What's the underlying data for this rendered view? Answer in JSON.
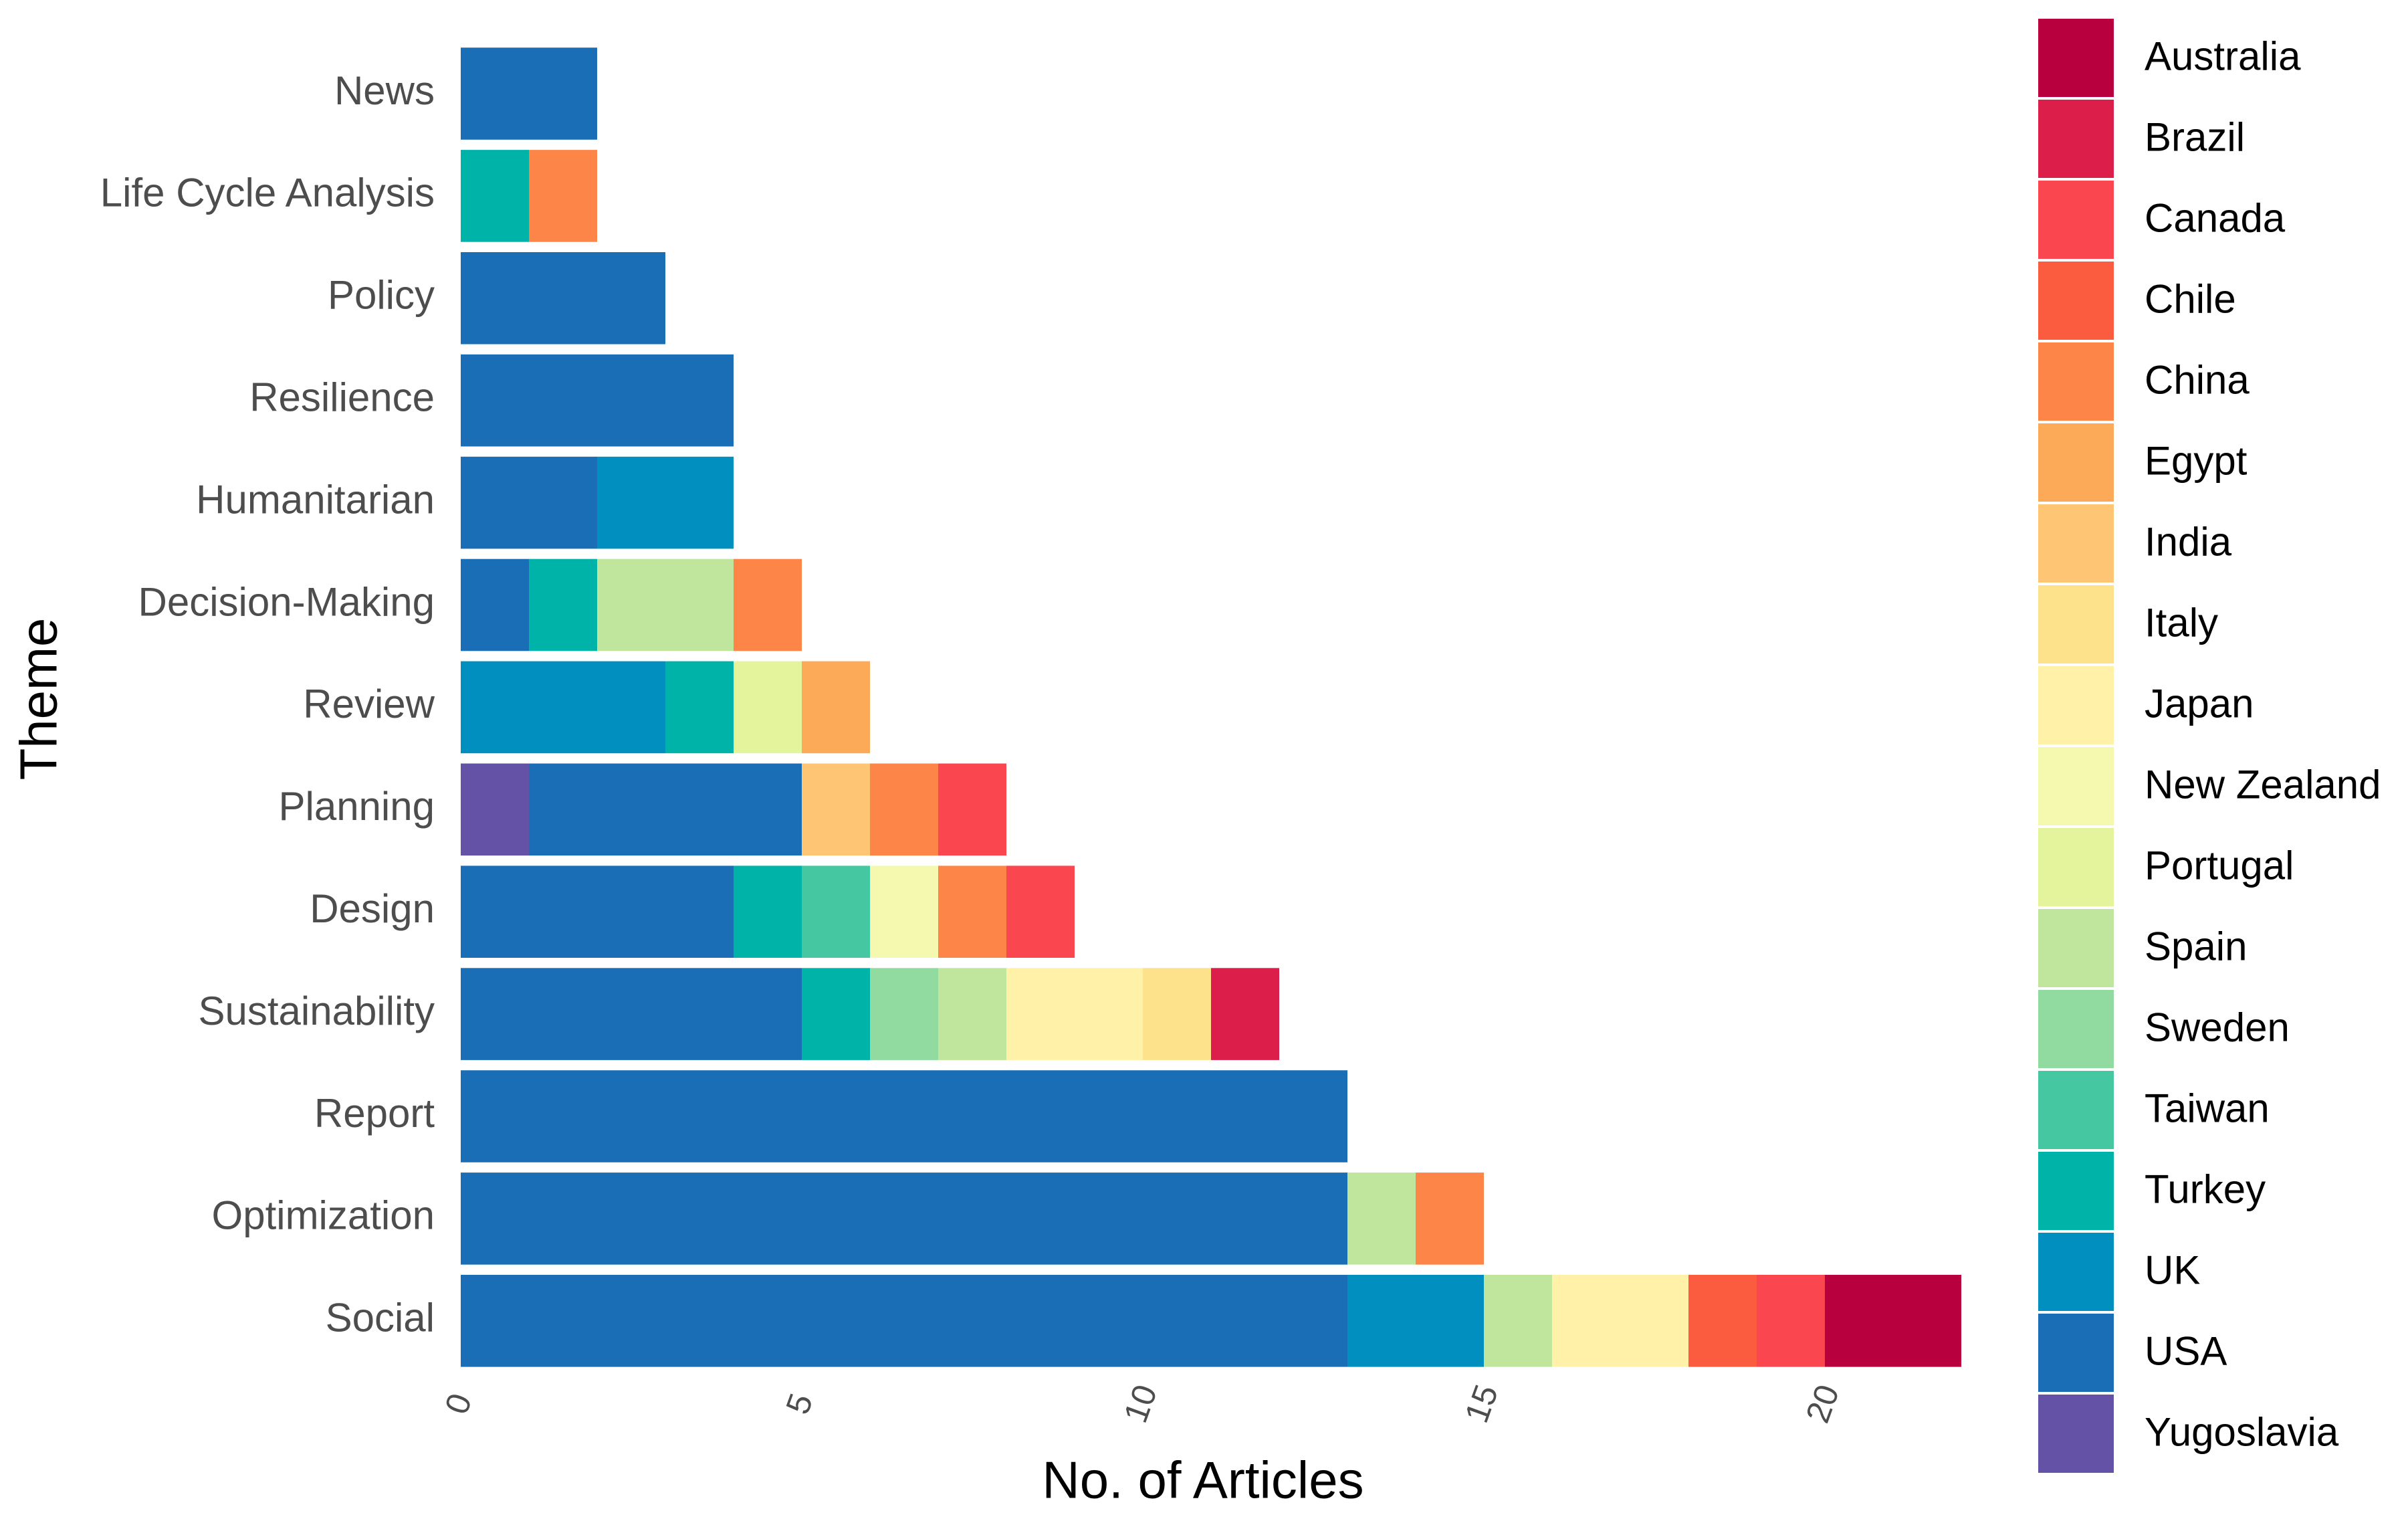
{
  "chart_data": {
    "type": "stacked-barh",
    "x_label": "No. of Articles",
    "y_label": "Theme",
    "categories": [
      "News",
      "Life Cycle Analysis",
      "Policy",
      "Resilience",
      "Humanitarian",
      "Decision-Making",
      "Review",
      "Planning",
      "Design",
      "Sustainability",
      "Report",
      "Optimization",
      "Social"
    ],
    "series": [
      {
        "name": "Yugoslavia",
        "color": "#6352a5",
        "values": [
          0,
          0,
          0,
          0,
          0,
          0,
          0,
          1,
          0,
          0,
          0,
          0,
          0
        ]
      },
      {
        "name": "USA",
        "color": "#1a6eb6",
        "values": [
          2,
          0,
          3,
          4,
          2,
          1,
          0,
          4,
          4,
          5,
          13,
          13,
          13
        ]
      },
      {
        "name": "UK",
        "color": "#008fbf",
        "values": [
          0,
          0,
          0,
          0,
          2,
          0,
          3,
          0,
          0,
          0,
          0,
          0,
          2
        ]
      },
      {
        "name": "Turkey",
        "color": "#00b3a9",
        "values": [
          0,
          1,
          0,
          0,
          0,
          1,
          1,
          0,
          1,
          1,
          0,
          0,
          0
        ]
      },
      {
        "name": "Taiwan",
        "color": "#45c8a2",
        "values": [
          0,
          0,
          0,
          0,
          0,
          0,
          0,
          0,
          1,
          0,
          0,
          0,
          0
        ]
      },
      {
        "name": "Sweden",
        "color": "#91dba0",
        "values": [
          0,
          0,
          0,
          0,
          0,
          0,
          0,
          0,
          0,
          1,
          0,
          0,
          0
        ]
      },
      {
        "name": "Spain",
        "color": "#c0e69d",
        "values": [
          0,
          0,
          0,
          0,
          0,
          2,
          0,
          0,
          0,
          1,
          0,
          1,
          1
        ]
      },
      {
        "name": "Portugal",
        "color": "#e3f49d",
        "values": [
          0,
          0,
          0,
          0,
          0,
          0,
          1,
          0,
          0,
          0,
          0,
          0,
          0
        ]
      },
      {
        "name": "New Zealand",
        "color": "#f5f9b0",
        "values": [
          0,
          0,
          0,
          0,
          0,
          0,
          0,
          0,
          1,
          0,
          0,
          0,
          0
        ]
      },
      {
        "name": "Japan",
        "color": "#fff1a8",
        "values": [
          0,
          0,
          0,
          0,
          0,
          0,
          0,
          0,
          0,
          2,
          0,
          0,
          2
        ]
      },
      {
        "name": "Italy",
        "color": "#fee18b",
        "values": [
          0,
          0,
          0,
          0,
          0,
          0,
          0,
          0,
          0,
          1,
          0,
          0,
          0
        ]
      },
      {
        "name": "India",
        "color": "#fec574",
        "values": [
          0,
          0,
          0,
          0,
          0,
          0,
          0,
          1,
          0,
          0,
          0,
          0,
          0
        ]
      },
      {
        "name": "Egypt",
        "color": "#fdaa58",
        "values": [
          0,
          0,
          0,
          0,
          0,
          0,
          1,
          0,
          0,
          0,
          0,
          0,
          0
        ]
      },
      {
        "name": "China",
        "color": "#fd8547",
        "values": [
          0,
          1,
          0,
          0,
          0,
          1,
          0,
          1,
          1,
          0,
          0,
          1,
          0
        ]
      },
      {
        "name": "Chile",
        "color": "#fb5b3f",
        "values": [
          0,
          0,
          0,
          0,
          0,
          0,
          0,
          0,
          0,
          0,
          0,
          0,
          1
        ]
      },
      {
        "name": "Canada",
        "color": "#f9464f",
        "values": [
          0,
          0,
          0,
          0,
          0,
          0,
          0,
          1,
          1,
          0,
          0,
          0,
          1
        ]
      },
      {
        "name": "Brazil",
        "color": "#dc1f4a",
        "values": [
          0,
          0,
          0,
          0,
          0,
          0,
          0,
          0,
          0,
          1,
          0,
          0,
          0
        ]
      },
      {
        "name": "Australia",
        "color": "#b8003f",
        "values": [
          0,
          0,
          0,
          0,
          0,
          0,
          0,
          0,
          0,
          0,
          0,
          0,
          2
        ]
      }
    ],
    "xlim": [
      0,
      22
    ],
    "xticks": [
      0,
      5,
      10,
      15,
      20
    ],
    "grid": false,
    "legend": "right"
  }
}
